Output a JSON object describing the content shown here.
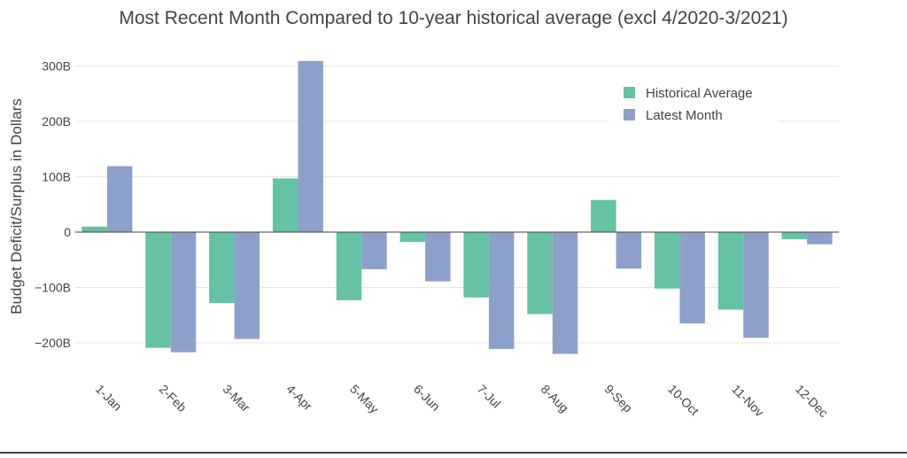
{
  "chart_data": {
    "type": "bar",
    "title": "Most Recent Month Compared to 10-year historical average (excl 4/2020-3/2021)",
    "xlabel": "",
    "ylabel": "Budget Deficit/Surplus in Dollars",
    "categories": [
      "1-Jan",
      "2-Feb",
      "3-Mar",
      "4-Apr",
      "5-May",
      "6-Jun",
      "7-Jul",
      "8-Aug",
      "9-Sep",
      "10-Oct",
      "11-Nov",
      "12-Dec"
    ],
    "ylim": [
      -240,
      325
    ],
    "yticks": [
      -200,
      -100,
      0,
      100,
      200,
      300
    ],
    "yticklabels": [
      "−200B",
      "−100B",
      "0",
      "100B",
      "200B",
      "300B"
    ],
    "grid": true,
    "legend_position": "top-right",
    "series": [
      {
        "name": "Historical Average",
        "color": "#66c2a5",
        "values": [
          10,
          -209,
          -128,
          97,
          -123,
          -18,
          -118,
          -148,
          58,
          -102,
          -140,
          -13
        ]
      },
      {
        "name": "Latest Month",
        "color": "#8da0cb",
        "values": [
          119,
          -217,
          -193,
          309,
          -67,
          -89,
          -211,
          -220,
          -66,
          -165,
          -191,
          -22
        ]
      }
    ]
  }
}
